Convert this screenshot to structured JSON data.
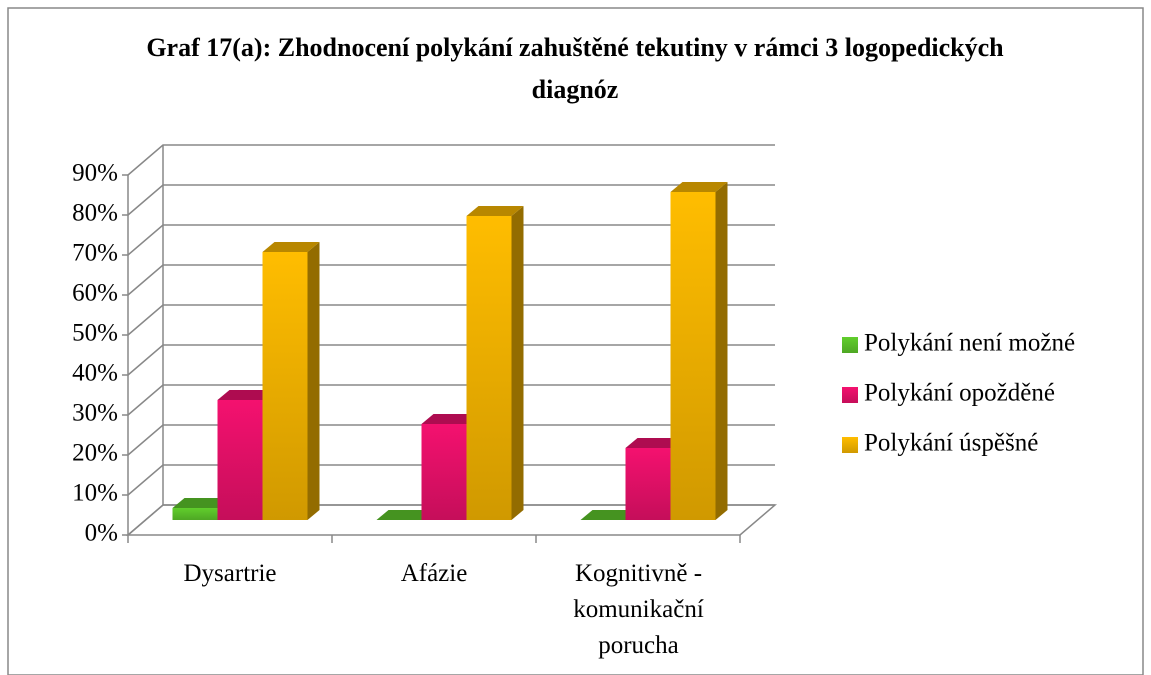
{
  "chart_data": {
    "type": "bar3d",
    "title": "Graf 17(a): Zhodnocení polykání zahuštěné tekutiny v rámci 3 logopedických diagnóz",
    "categories": [
      "Dysartrie",
      "Afázie",
      "Kognitivně - komunikační porucha"
    ],
    "series": [
      {
        "name": "Polykání není možné",
        "color": "#5cc42a",
        "values": [
          3,
          0,
          0
        ]
      },
      {
        "name": "Polykání opožděné",
        "color": "#e8106a",
        "values": [
          30,
          24,
          18
        ]
      },
      {
        "name": "Polykání úspěšné",
        "color": "#f5b400",
        "values": [
          67,
          76,
          82
        ]
      }
    ],
    "ylim": [
      0,
      90
    ],
    "yticks": [
      {
        "value": 0,
        "label": "0%"
      },
      {
        "value": 10,
        "label": "10%"
      },
      {
        "value": 20,
        "label": "20%"
      },
      {
        "value": 30,
        "label": "30%"
      },
      {
        "value": 40,
        "label": "40%"
      },
      {
        "value": 50,
        "label": "50%"
      },
      {
        "value": 60,
        "label": "60%"
      },
      {
        "value": 70,
        "label": "70%"
      },
      {
        "value": 80,
        "label": "80%"
      },
      {
        "value": 90,
        "label": "90%"
      }
    ],
    "grid": true,
    "legend": "right"
  }
}
